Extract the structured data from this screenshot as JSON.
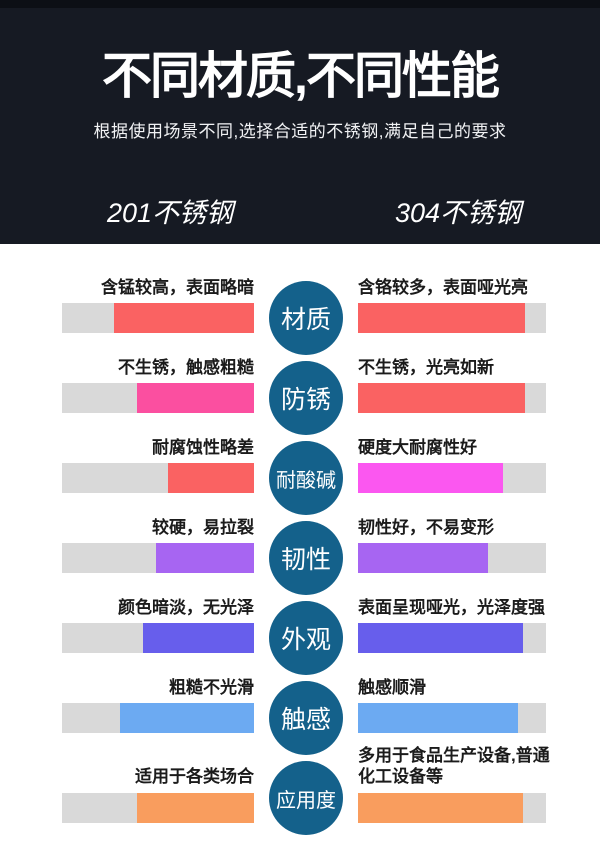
{
  "header": {
    "background": "#161a23",
    "title": "不同材质,不同性能",
    "subtitle": "根据使用场景不同,选择合适的不锈钢,满足自己的要求",
    "left_column_title": "201不锈钢",
    "right_column_title": "304不锈钢"
  },
  "comparison": {
    "track_color": "#d9d9d9",
    "circle_color": "#14618b",
    "rows": [
      {
        "center": "材质",
        "left": {
          "label": "含锰较高，表面略暗",
          "fill_percent": 73,
          "color": "#fa6262"
        },
        "right": {
          "label": "含铬较多，表面哑光亮",
          "fill_percent": 89,
          "color": "#fa6262"
        }
      },
      {
        "center": "防锈",
        "left": {
          "label": "不生锈，触感粗糙",
          "fill_percent": 61,
          "color": "#fb4fa0"
        },
        "right": {
          "label": "不生锈，光亮如新",
          "fill_percent": 89,
          "color": "#fa6262"
        }
      },
      {
        "center": "耐酸碱",
        "left": {
          "label": "耐腐蚀性略差",
          "fill_percent": 45,
          "color": "#fa6262"
        },
        "right": {
          "label": "硬度大耐腐性好",
          "fill_percent": 77,
          "color": "#fb57f0"
        }
      },
      {
        "center": "韧性",
        "left": {
          "label": "较硬，易拉裂",
          "fill_percent": 51,
          "color": "#a765f2"
        },
        "right": {
          "label": "韧性好，不易变形",
          "fill_percent": 69,
          "color": "#a765f2"
        }
      },
      {
        "center": "外观",
        "left": {
          "label": "颜色暗淡，无光泽",
          "fill_percent": 58,
          "color": "#675eec"
        },
        "right": {
          "label": "表面呈现哑光，光泽度强",
          "fill_percent": 88,
          "color": "#675eec"
        }
      },
      {
        "center": "触感",
        "left": {
          "label": "粗糙不光滑",
          "fill_percent": 70,
          "color": "#6caaf2"
        },
        "right": {
          "label": "触感顺滑",
          "fill_percent": 85,
          "color": "#6caaf2"
        }
      },
      {
        "center": "应用度",
        "left": {
          "label": "适用于各类场合",
          "fill_percent": 61,
          "color": "#f99d5e"
        },
        "right": {
          "label": "多用于食品生产设备,普通化工设备等",
          "label_lines": [
            "多用于食品生产设备,普通",
            "化工设备等"
          ],
          "fill_percent": 88,
          "color": "#f99d5e"
        }
      }
    ]
  }
}
